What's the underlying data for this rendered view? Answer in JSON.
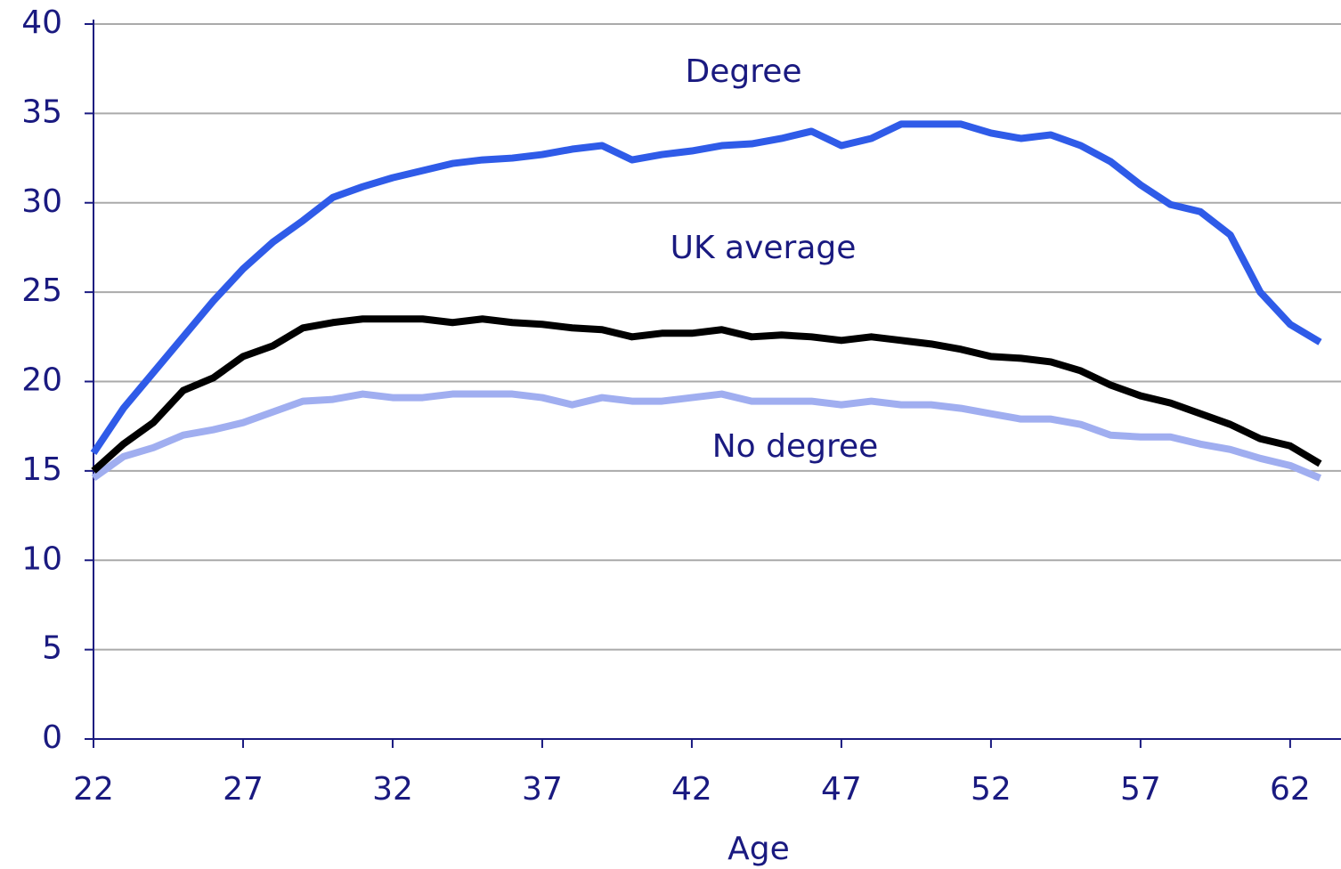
{
  "chart_data": {
    "type": "line",
    "x_label": "Age",
    "x": [
      22,
      23,
      24,
      25,
      26,
      27,
      28,
      29,
      30,
      31,
      32,
      33,
      34,
      35,
      36,
      37,
      38,
      39,
      40,
      41,
      42,
      43,
      44,
      45,
      46,
      47,
      48,
      49,
      50,
      51,
      52,
      53,
      54,
      55,
      56,
      57,
      58,
      59,
      60,
      61,
      62,
      63
    ],
    "series": [
      {
        "name": "Degree",
        "color": "#2f5be8",
        "values": [
          16,
          18.5,
          20.5,
          22.5,
          24.5,
          26.3,
          27.8,
          29,
          30.3,
          30.9,
          31.4,
          31.8,
          32.2,
          32.4,
          32.5,
          32.7,
          33,
          33.2,
          32.4,
          32.7,
          32.9,
          33.2,
          33.3,
          33.6,
          34,
          33.2,
          33.6,
          34.4,
          34.4,
          34.4,
          33.9,
          33.6,
          33.8,
          33.2,
          32.3,
          31,
          29.9,
          29.5,
          28.2,
          25,
          23.2,
          22.2
        ]
      },
      {
        "name": "UK average",
        "color": "#000000",
        "values": [
          15,
          16.5,
          17.7,
          19.5,
          20.2,
          21.4,
          22,
          23,
          23.3,
          23.5,
          23.5,
          23.5,
          23.3,
          23.5,
          23.3,
          23.2,
          23,
          22.9,
          22.5,
          22.7,
          22.7,
          22.9,
          22.5,
          22.6,
          22.5,
          22.3,
          22.5,
          22.3,
          22.1,
          21.8,
          21.4,
          21.3,
          21.1,
          20.6,
          19.8,
          19.2,
          18.8,
          18.2,
          17.6,
          16.8,
          16.4,
          15.4
        ]
      },
      {
        "name": "No degree",
        "color": "#a0aef0",
        "values": [
          14.6,
          15.8,
          16.3,
          17,
          17.3,
          17.7,
          18.3,
          18.9,
          19,
          19.3,
          19.1,
          19.1,
          19.3,
          19.3,
          19.3,
          19.1,
          18.7,
          19.1,
          18.9,
          18.9,
          19.1,
          19.3,
          18.9,
          18.9,
          18.9,
          18.7,
          18.9,
          18.7,
          18.7,
          18.5,
          18.2,
          17.9,
          17.9,
          17.6,
          17,
          16.9,
          16.9,
          16.5,
          16.2,
          15.7,
          15.3,
          14.6
        ]
      }
    ],
    "xlim": [
      22,
      63.7
    ],
    "xticks": [
      22,
      27,
      32,
      37,
      42,
      47,
      52,
      57,
      62
    ],
    "ylim": [
      0,
      40
    ],
    "yticks": [
      0,
      5,
      10,
      15,
      20,
      25,
      30,
      35,
      40
    ],
    "grid": true
  }
}
